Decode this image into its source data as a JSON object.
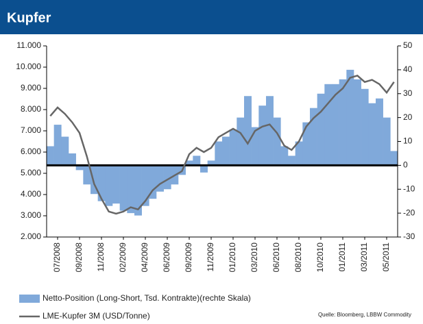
{
  "chart_data": {
    "type": "bar-line",
    "title": "Kupfer",
    "categories": [
      null,
      "07/2008",
      null,
      null,
      "09/2008",
      null,
      null,
      "11/2008",
      null,
      null,
      "02/2009",
      null,
      null,
      "04/2009",
      null,
      null,
      "06/2009",
      null,
      null,
      "09/2009",
      null,
      null,
      "11/2009",
      null,
      null,
      "01/2010",
      null,
      null,
      "03/2010",
      null,
      null,
      "06/2010",
      null,
      null,
      "08/2010",
      null,
      null,
      "10/2010",
      null,
      null,
      "01/2011",
      null,
      null,
      "03/2011",
      null,
      null,
      "05/2011",
      null
    ],
    "series": [
      {
        "name": "Netto-Position (Long-Short, Tsd. Kontrakte)(rechte Skala)",
        "color": "#80a9da",
        "axis": "y2",
        "values": [
          8,
          17,
          12,
          5,
          -2,
          -8,
          -12,
          -15,
          -17,
          -16,
          -19,
          -20,
          -21,
          -17,
          -14,
          -11,
          -10,
          -8,
          -4,
          2,
          4,
          -3,
          2,
          10,
          12,
          15,
          20,
          29,
          16,
          25,
          29,
          20,
          8,
          4,
          10,
          18,
          24,
          30,
          34,
          34,
          36,
          40,
          36,
          32,
          26,
          28,
          20,
          6
        ]
      },
      {
        "name": "LME-Kupfer 3M (USD/Tonne)",
        "color": "#666666",
        "values": [
          7700,
          8100,
          7800,
          7400,
          6900,
          5800,
          4500,
          3800,
          3200,
          3100,
          3200,
          3400,
          3300,
          3700,
          4200,
          4500,
          4700,
          4900,
          5100,
          5900,
          6200,
          6000,
          6200,
          6700,
          6900,
          7100,
          6900,
          6400,
          7000,
          7200,
          7300,
          6900,
          6300,
          6100,
          6500,
          7200,
          7600,
          7900,
          8300,
          8700,
          9000,
          9500,
          9600,
          9300,
          9400,
          9200,
          8800,
          9300
        ]
      }
    ],
    "ylim": [
      2000,
      11000
    ],
    "yticks": [
      {
        "value": 2000,
        "label": "2.000"
      },
      {
        "value": 3000,
        "label": "3.000"
      },
      {
        "value": 4000,
        "label": "4.000"
      },
      {
        "value": 5000,
        "label": "5.000"
      },
      {
        "value": 6000,
        "label": "6.000"
      },
      {
        "value": 7000,
        "label": "7.000"
      },
      {
        "value": 8000,
        "label": "8.000"
      },
      {
        "value": 9000,
        "label": "9.000"
      },
      {
        "value": 10000,
        "label": "10.000"
      },
      {
        "value": 11000,
        "label": "11.000"
      }
    ],
    "y2lim": [
      -30,
      50
    ],
    "y2ticks": [
      -30,
      -20,
      -10,
      0,
      10,
      20,
      30,
      40,
      50
    ],
    "source": "Quelle: Bloomberg, LBBW Commodity"
  }
}
